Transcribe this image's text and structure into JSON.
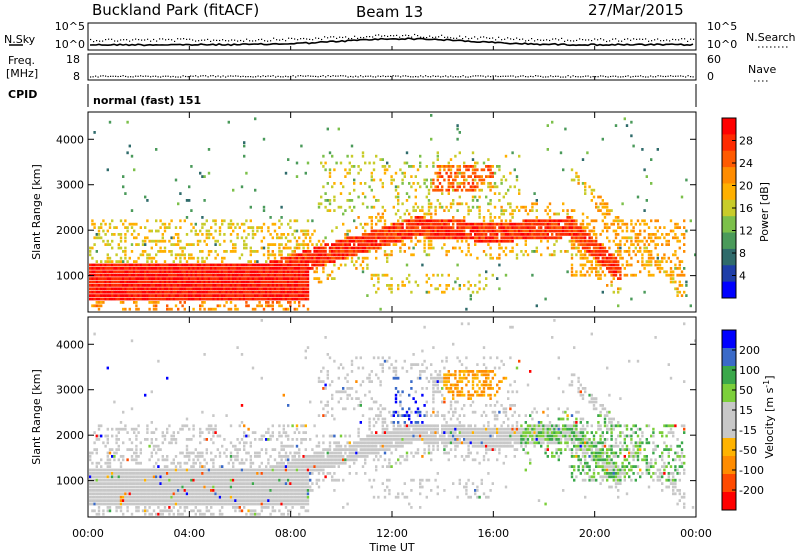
{
  "header": {
    "station": "Buckland Park (fitACF)",
    "beam": "Beam 13",
    "date": "27/Mar/2015"
  },
  "noise_panel": {
    "left_label": "N.Sky",
    "right_label": "N.Search",
    "tick_top": "10^5",
    "tick_bottom": "10^0"
  },
  "freq_panel": {
    "left_label_1": "Freq.",
    "left_label_2": "[MHz]",
    "right_label": "Nave",
    "left_ticks": [
      "18",
      "8"
    ],
    "right_ticks": [
      "60",
      "0"
    ]
  },
  "cpid": {
    "label": "CPID",
    "program": "normal (fast) 151"
  },
  "chart_data": [
    {
      "type": "heatmap",
      "name": "power",
      "ylabel": "Slant Range [km]",
      "xlabel": "",
      "x_ticks": [
        "00:00",
        "04:00",
        "08:00",
        "12:00",
        "16:00",
        "20:00",
        "00:00"
      ],
      "y_ticks": [
        1000,
        2000,
        3000,
        4000
      ],
      "ylim": [
        200,
        4600
      ],
      "xlim_hours": [
        0,
        24
      ],
      "colorbar": {
        "label": "Power [dB]",
        "ticks": [
          4,
          8,
          12,
          16,
          20,
          24,
          28
        ],
        "range": [
          0,
          32
        ],
        "colors": [
          "#0000ff",
          "#1e3ea8",
          "#2f6b6b",
          "#4a9a5a",
          "#7cc04a",
          "#c8cc2a",
          "#ffb000",
          "#ff8c00",
          "#ff5a00",
          "#ff2a00",
          "#ff0000"
        ]
      }
    },
    {
      "type": "heatmap",
      "name": "velocity",
      "ylabel": "Slant Range [km]",
      "xlabel": "Time UT",
      "x_ticks": [
        "00:00",
        "04:00",
        "08:00",
        "12:00",
        "16:00",
        "20:00",
        "00:00"
      ],
      "y_ticks": [
        1000,
        2000,
        3000,
        4000
      ],
      "ylim": [
        200,
        4600
      ],
      "xlim_hours": [
        0,
        24
      ],
      "colorbar": {
        "label": "Velocity [m s^-1]",
        "ticks": [
          200,
          100,
          50,
          15,
          -15,
          -50,
          -100,
          -200
        ],
        "range": [
          -250,
          250
        ],
        "colors": [
          "#ff0000",
          "#ff4a00",
          "#ff8c00",
          "#ffb300",
          "#c8c8c8",
          "#c8c8c8",
          "#7ccf3a",
          "#3aa84a",
          "#3a6ac8",
          "#0000ff"
        ]
      }
    }
  ]
}
